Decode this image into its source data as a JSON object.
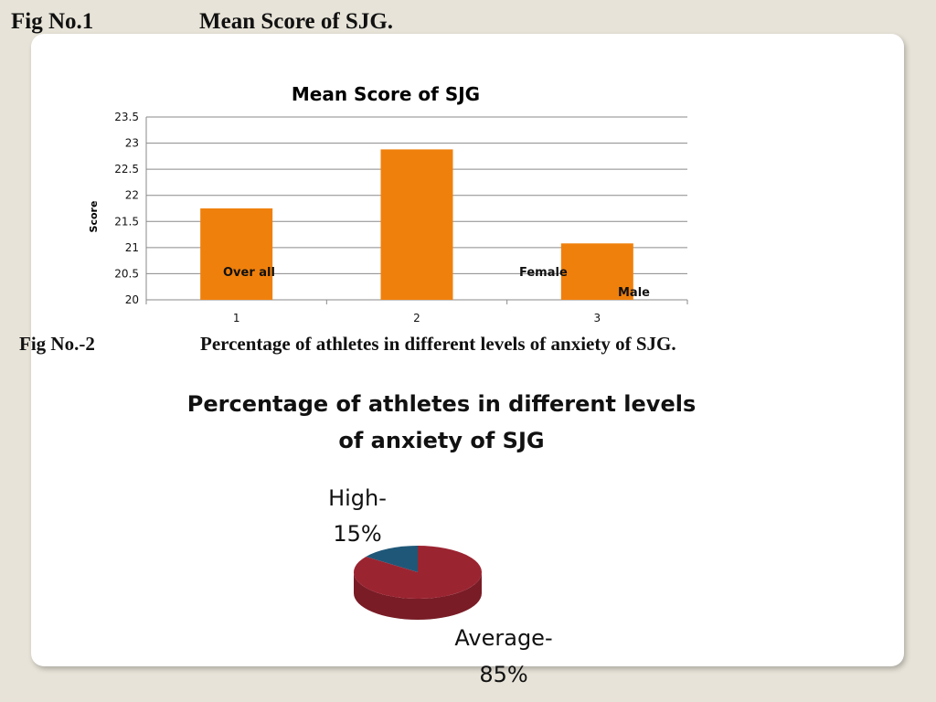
{
  "fig1": {
    "number": "Fig No.1",
    "caption": "Mean Score of  SJG."
  },
  "fig2": {
    "number": "Fig No.-2",
    "caption": "Percentage of athletes in different levels of anxiety of SJG."
  },
  "chart_data": [
    {
      "type": "bar",
      "title": "Mean Score of SJG",
      "categories": [
        "1",
        "2",
        "3"
      ],
      "values": [
        21.75,
        22.88,
        21.08
      ],
      "ylabel": "Score",
      "xlabel": "",
      "ylim": [
        20,
        23.5
      ],
      "yticks": [
        "20",
        "20.5",
        "21",
        "21.5",
        "22",
        "22.5",
        "23",
        "23.5"
      ],
      "color": "#f0800c",
      "grid": true,
      "annotations": [
        "Over all",
        "Female",
        "Male"
      ]
    },
    {
      "type": "pie",
      "title_lines": [
        "Percentage of athletes in different levels",
        "of anxiety of SJG"
      ],
      "slices": [
        {
          "name": "High",
          "value": 15,
          "label_lines": [
            "High-",
            "15%"
          ],
          "color": "#1f5778"
        },
        {
          "name": "Average",
          "value": 85,
          "label_lines": [
            "Average-",
            "85%"
          ],
          "color": "#9b2431"
        }
      ]
    }
  ]
}
